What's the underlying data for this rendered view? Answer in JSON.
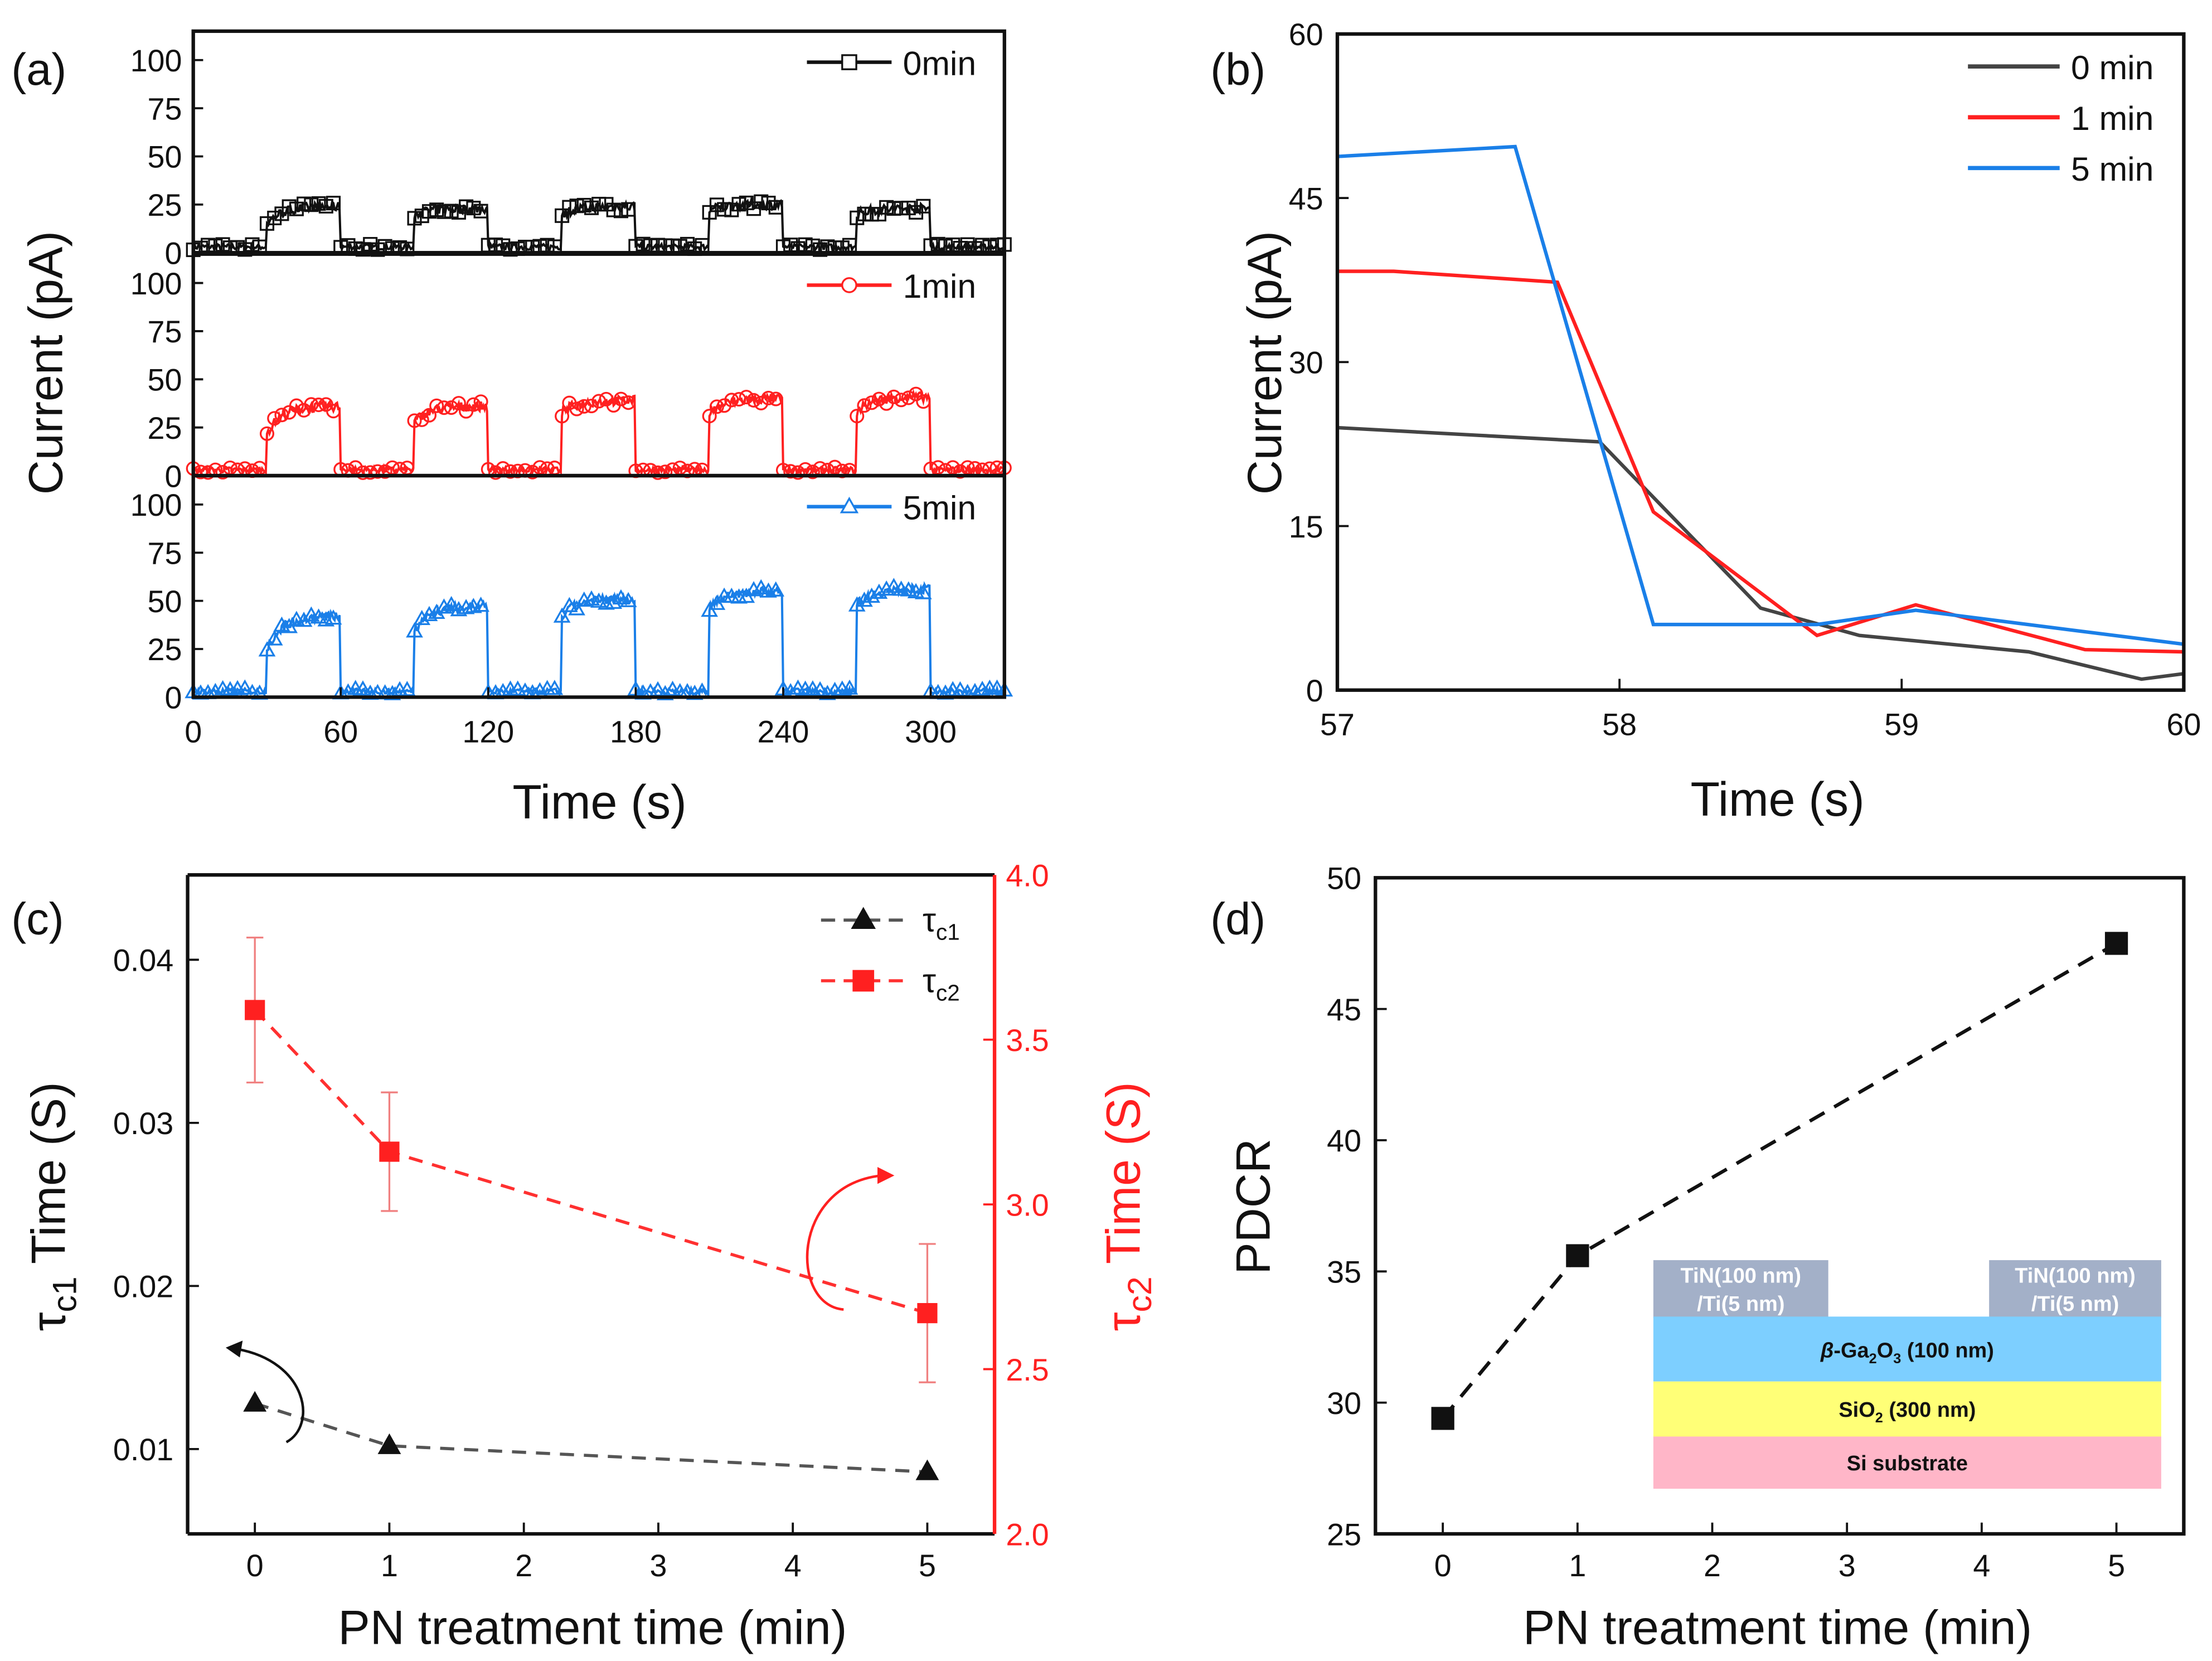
{
  "panel_labels": [
    "(a)",
    "(b)",
    "(c)",
    "(d)"
  ],
  "colors": {
    "black": "#111111",
    "red": "#ff2020",
    "blue": "#1a7fe8",
    "gray": "#444444",
    "tin": "#a3b0c8",
    "ga2o3": "#7dcfff",
    "sio2": "#ffff77",
    "si": "#ffb6c8"
  },
  "chart_data": [
    {
      "id": "a",
      "type": "line",
      "xlabel": "Time (s)",
      "ylabel": "Current (pA)",
      "xlim": [
        0,
        330
      ],
      "xticks": [
        0,
        60,
        120,
        180,
        240,
        300
      ],
      "ylim": [
        0,
        115
      ],
      "yticks": [
        0,
        25,
        50,
        75,
        100
      ],
      "on_intervals": [
        [
          30,
          60
        ],
        [
          90,
          120
        ],
        [
          150,
          180
        ],
        [
          210,
          240
        ],
        [
          270,
          300
        ]
      ],
      "baseline": 3,
      "series": [
        {
          "name": "0min",
          "color": "#111111",
          "marker": "square",
          "pulses": [
            [
              15,
              24
            ],
            [
              20,
              23
            ],
            [
              20,
              24
            ],
            [
              22,
              25
            ],
            [
              20,
              23
            ]
          ]
        },
        {
          "name": "1min",
          "color": "#ff2020",
          "marker": "circle",
          "pulses": [
            [
              22,
              36
            ],
            [
              28,
              36
            ],
            [
              33,
              39
            ],
            [
              32,
              40
            ],
            [
              33,
              41
            ]
          ]
        },
        {
          "name": "5min",
          "color": "#1a7fe8",
          "marker": "triangle",
          "pulses": [
            [
              25,
              42
            ],
            [
              35,
              47
            ],
            [
              42,
              51
            ],
            [
              46,
              55
            ],
            [
              48,
              56
            ]
          ]
        }
      ]
    },
    {
      "id": "b",
      "type": "line",
      "xlabel": "Time (s)",
      "ylabel": "Current (pA)",
      "xlim": [
        57,
        60
      ],
      "xticks": [
        57,
        58,
        59,
        60
      ],
      "ylim": [
        0,
        60
      ],
      "yticks": [
        0,
        15,
        30,
        45,
        60
      ],
      "legend": "top-right",
      "series": [
        {
          "name": "0 min",
          "color": "#444444",
          "x": [
            57,
            57.5,
            57.93,
            58.5,
            58.85,
            59.45,
            59.85,
            60
          ],
          "y": [
            24,
            23.3,
            22.7,
            7.5,
            5,
            3.5,
            1,
            1.5
          ]
        },
        {
          "name": "1 min",
          "color": "#ff2020",
          "x": [
            57,
            57.2,
            57.78,
            58.12,
            58.7,
            59.05,
            59.65,
            60
          ],
          "y": [
            38.3,
            38.3,
            37.3,
            16.3,
            5,
            7.8,
            3.7,
            3.5
          ]
        },
        {
          "name": "5 min",
          "color": "#1a7fe8",
          "x": [
            57,
            57.63,
            58.12,
            58.7,
            59.05,
            59.6,
            60
          ],
          "y": [
            48.8,
            49.7,
            6,
            6,
            7.3,
            5.5,
            4.2
          ]
        }
      ]
    },
    {
      "id": "c",
      "type": "scatter",
      "xlabel": "PN treatment time (min)",
      "ylabel_left": {
        "tau": "τ",
        "sub": "c1",
        "rest": " Time (S)"
      },
      "ylabel_right": {
        "tau": "τ",
        "sub": "c2",
        "rest": " Time (S)"
      },
      "xlim": [
        -0.5,
        5.5
      ],
      "xticks": [
        0,
        1,
        2,
        3,
        4,
        5
      ],
      "ylim_left": [
        0.0048,
        0.0452
      ],
      "yticks_left": [
        "0.01",
        "0.02",
        "0.03",
        "0.04"
      ],
      "ylim_right": [
        2.0,
        4.0
      ],
      "yticks_right": [
        "2.0",
        "2.5",
        "3.0",
        "3.5",
        "4.0"
      ],
      "legend": "top-right",
      "series": [
        {
          "name": {
            "tau": "τ",
            "sub": "c1"
          },
          "axis": "left",
          "color": "#111111",
          "line": "#555555",
          "marker": "triangle",
          "x": [
            0,
            1,
            5
          ],
          "y": [
            0.0128,
            0.0102,
            0.0086
          ]
        },
        {
          "name": {
            "tau": "τ",
            "sub": "c2"
          },
          "axis": "right",
          "color": "#ff2020",
          "line": "#ff3030",
          "marker": "square",
          "x": [
            0,
            1,
            5
          ],
          "y": [
            3.59,
            3.16,
            2.67
          ],
          "yerr": [
            0.22,
            0.18,
            0.21
          ]
        }
      ]
    },
    {
      "id": "d",
      "type": "scatter",
      "xlabel": "PN treatment time (min)",
      "ylabel": "PDCR",
      "xlim": [
        -0.5,
        5.5
      ],
      "xticks": [
        0,
        1,
        2,
        3,
        4,
        5
      ],
      "ylim": [
        25,
        50
      ],
      "yticks": [
        25,
        30,
        35,
        40,
        45,
        50
      ],
      "series": [
        {
          "name": "PDCR",
          "color": "#111111",
          "x": [
            0,
            1,
            5
          ],
          "y": [
            29.4,
            35.6,
            47.5
          ]
        }
      ],
      "inset": {
        "contact_line1": "TiN(100 nm)",
        "contact_line2": "/Ti(5 nm)",
        "ga2o3": {
          "beta": "β",
          "a": "-Ga",
          "s1": "2",
          "b": "O",
          "s2": "3",
          "c": " (100 nm)"
        },
        "sio2": {
          "a": "SiO",
          "s1": "2",
          "c": " (300 nm)"
        },
        "si": "Si substrate"
      }
    }
  ]
}
